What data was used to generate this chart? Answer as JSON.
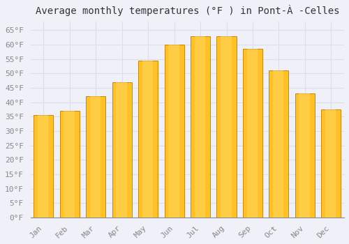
{
  "title": "Average monthly temperatures (°F ) in Pont-À -Celles",
  "months": [
    "Jan",
    "Feb",
    "Mar",
    "Apr",
    "May",
    "Jun",
    "Jul",
    "Aug",
    "Sep",
    "Oct",
    "Nov",
    "Dec"
  ],
  "values": [
    35.5,
    37,
    42,
    47,
    54.5,
    60,
    63,
    63,
    58.5,
    51,
    43,
    37.5
  ],
  "bar_color_main": "#FFC125",
  "bar_color_edge": "#C8860A",
  "ylim": [
    0,
    68
  ],
  "yticks": [
    0,
    5,
    10,
    15,
    20,
    25,
    30,
    35,
    40,
    45,
    50,
    55,
    60,
    65
  ],
  "background_color": "#F0F0F8",
  "plot_bg_color": "#F0F0F8",
  "grid_color": "#DDDDEE",
  "title_fontsize": 10,
  "tick_fontsize": 8,
  "tick_color": "#888888",
  "title_color": "#333333"
}
